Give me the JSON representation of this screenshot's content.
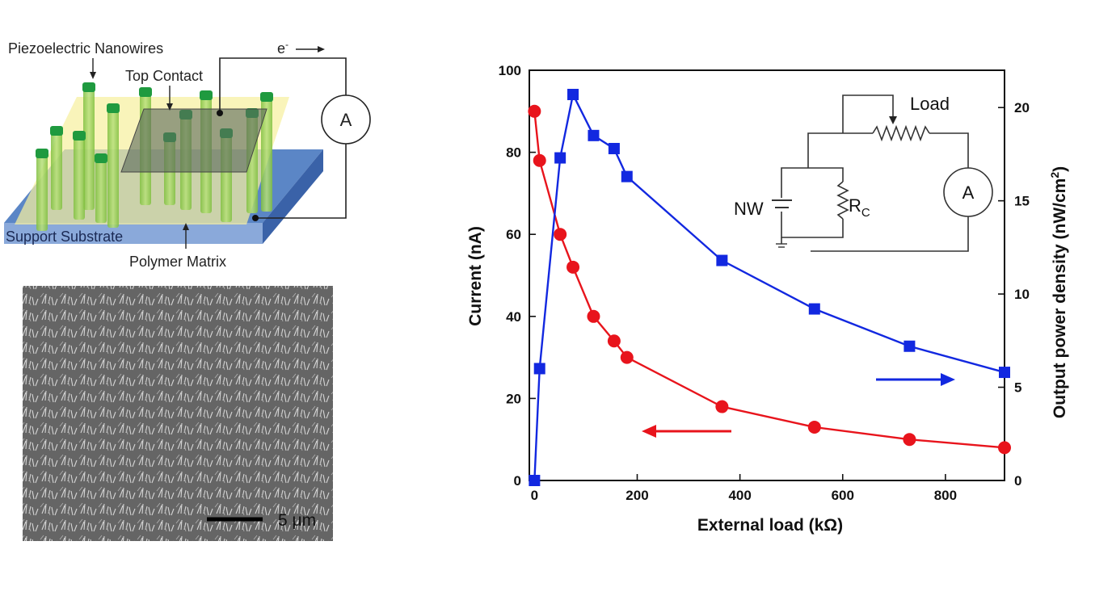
{
  "schematic": {
    "nanowires_label": "Piezoelectric Nanowires",
    "top_contact_label": "Top Contact",
    "electron_label": "e",
    "electron_sup": "-",
    "ammeter_label": "A",
    "substrate_label": "Support Substrate",
    "matrix_label": "Polymer Matrix"
  },
  "micrograph": {
    "scale_bar_label": "5 μm"
  },
  "chart_data": {
    "type": "line",
    "xlabel": "External load (kΩ)",
    "ylabel": "Current (nA)",
    "y2label_main": "Output power density (nW/cm",
    "y2label_sup": "2",
    "y2label_end": ")",
    "xlim": [
      -10,
      915
    ],
    "ylim": [
      0,
      100
    ],
    "y2lim": [
      0,
      22
    ],
    "xticks": [
      0,
      200,
      400,
      600,
      800
    ],
    "yticks": [
      0,
      20,
      40,
      60,
      80,
      100
    ],
    "y2ticks": [
      0,
      5,
      10,
      15,
      20
    ],
    "grid": false,
    "series": [
      {
        "axis": "left",
        "color": "#e8141c",
        "marker": "circle",
        "x": [
          0,
          10,
          50,
          75,
          115,
          155,
          180,
          365,
          545,
          730,
          915
        ],
        "values": [
          90,
          78,
          60,
          52,
          40,
          34,
          30,
          18,
          13,
          10,
          8
        ]
      },
      {
        "axis": "right",
        "color": "#1228e0",
        "marker": "square",
        "x": [
          0,
          10,
          50,
          75,
          115,
          155,
          180,
          365,
          545,
          730,
          915
        ],
        "values": [
          0,
          6.0,
          17.3,
          20.7,
          18.5,
          17.8,
          16.3,
          11.8,
          9.2,
          7.2,
          5.8
        ]
      }
    ],
    "inset": {
      "load_label": "Load",
      "nw_label": "NW",
      "rc_label": "R",
      "rc_sub": "C",
      "ammeter_label": "A"
    }
  }
}
